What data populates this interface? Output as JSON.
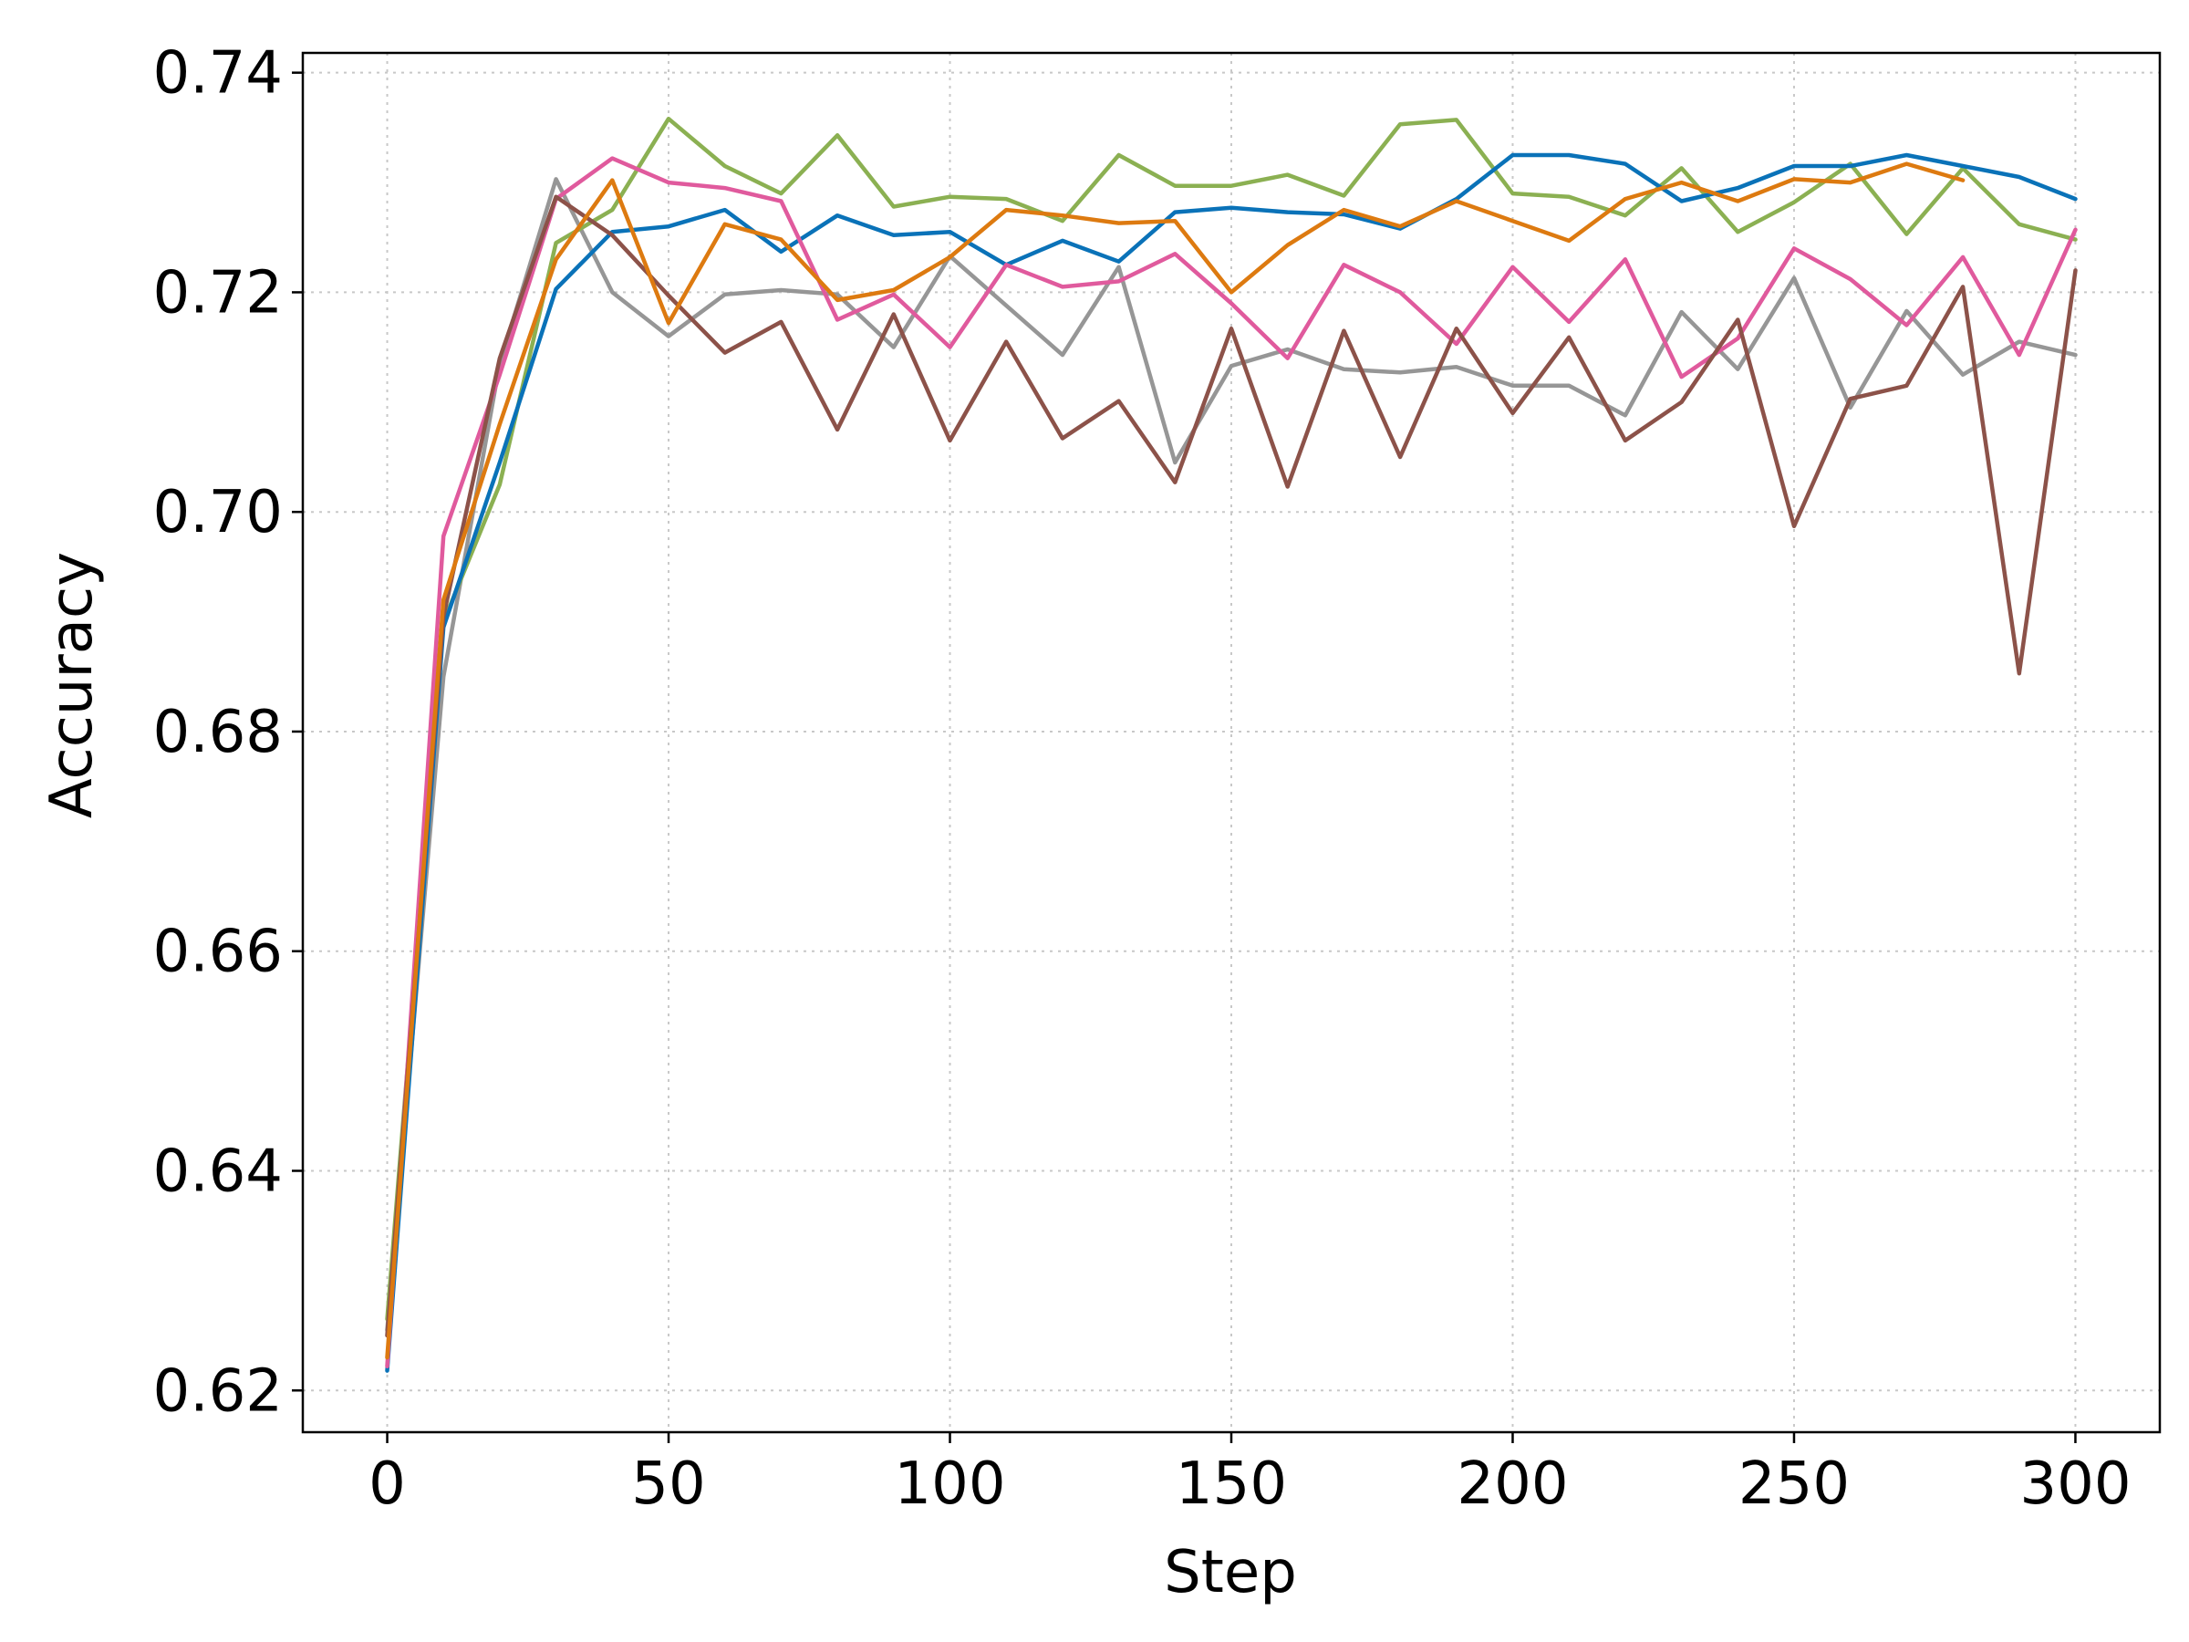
{
  "chart_data": {
    "type": "line",
    "title": "",
    "xlabel": "Step",
    "ylabel": "Accuracy",
    "xlim": [
      -15,
      315
    ],
    "ylim": [
      0.6162,
      0.7418
    ],
    "xticks": [
      0,
      50,
      100,
      150,
      200,
      250,
      300
    ],
    "xtick_labels": [
      "0",
      "50",
      "100",
      "150",
      "200",
      "250",
      "300"
    ],
    "yticks": [
      0.62,
      0.64,
      0.66,
      0.68,
      0.7,
      0.72,
      0.74
    ],
    "ytick_labels": [
      "0.62",
      "0.64",
      "0.66",
      "0.68",
      "0.70",
      "0.72",
      "0.74"
    ],
    "grid": true,
    "legend": "none",
    "series": [
      {
        "color": "#969696",
        "x": [
          0,
          10,
          20,
          30,
          40,
          50,
          60,
          70,
          80,
          90,
          100,
          110,
          120,
          130,
          140,
          150,
          160,
          170,
          180,
          190,
          200,
          210,
          220,
          230,
          240,
          250,
          260,
          270,
          280,
          290,
          300
        ],
        "y": [
          0.6255,
          0.685,
          0.7135,
          0.7303,
          0.72,
          0.716,
          0.7198,
          0.7202,
          0.7198,
          0.715,
          0.7233,
          0.7188,
          0.7143,
          0.7223,
          0.7045,
          0.7133,
          0.7148,
          0.713,
          0.7127,
          0.7132,
          0.7115,
          0.7115,
          0.7088,
          0.7182,
          0.713,
          0.7213,
          0.7095,
          0.7183,
          0.7125,
          0.7155,
          0.7143
        ]
      },
      {
        "color": "#8bb052",
        "x": [
          0,
          10,
          20,
          30,
          40,
          50,
          60,
          70,
          80,
          90,
          100,
          110,
          120,
          130,
          140,
          150,
          160,
          170,
          180,
          190,
          200,
          210,
          220,
          230,
          240,
          250,
          260,
          270,
          280,
          290,
          300
        ],
        "y": [
          0.6265,
          0.69,
          0.7025,
          0.7245,
          0.7275,
          0.7358,
          0.7315,
          0.729,
          0.7343,
          0.7278,
          0.7287,
          0.7285,
          0.7265,
          0.7325,
          0.7297,
          0.7297,
          0.7307,
          0.7288,
          0.7353,
          0.7357,
          0.729,
          0.7287,
          0.727,
          0.7313,
          0.7255,
          0.7282,
          0.7317,
          0.7253,
          0.7313,
          0.7262,
          0.7248
        ]
      },
      {
        "color": "#0a72b8",
        "x": [
          0,
          10,
          20,
          30,
          40,
          50,
          60,
          70,
          80,
          90,
          100,
          110,
          120,
          130,
          140,
          150,
          160,
          170,
          180,
          190,
          200,
          210,
          220,
          230,
          240,
          250,
          260,
          270,
          280,
          290,
          300
        ],
        "y": [
          0.6218,
          0.6895,
          0.7045,
          0.7203,
          0.7255,
          0.726,
          0.7275,
          0.7237,
          0.727,
          0.7252,
          0.7255,
          0.7225,
          0.7247,
          0.7228,
          0.7273,
          0.7277,
          0.7273,
          0.7271,
          0.7258,
          0.7285,
          0.7325,
          0.7325,
          0.7317,
          0.7283,
          0.7295,
          0.7315,
          0.7315,
          0.7325,
          0.7315,
          0.7305,
          0.7285
        ]
      },
      {
        "color": "#e05a9d",
        "x": [
          0,
          10,
          20,
          30,
          40,
          50,
          60,
          70,
          80,
          90,
          100,
          110,
          120,
          130,
          140,
          150,
          160,
          170,
          180,
          190,
          200,
          210,
          220,
          230,
          240,
          250,
          260,
          270,
          280,
          290,
          300
        ],
        "y": [
          0.6222,
          0.6978,
          0.7125,
          0.7285,
          0.7322,
          0.73,
          0.7295,
          0.7283,
          0.7175,
          0.7198,
          0.715,
          0.7225,
          0.7205,
          0.721,
          0.7235,
          0.719,
          0.714,
          0.7225,
          0.72,
          0.7153,
          0.7223,
          0.7173,
          0.723,
          0.7123,
          0.7158,
          0.724,
          0.7212,
          0.717,
          0.7232,
          0.7143,
          0.7257
        ]
      },
      {
        "color": "#8c5249",
        "x": [
          0,
          10,
          20,
          30,
          40,
          50,
          60,
          70,
          80,
          90,
          100,
          110,
          120,
          130,
          140,
          150,
          160,
          170,
          180,
          190,
          200,
          210,
          220,
          230,
          240,
          250,
          260,
          270,
          280,
          290,
          300
        ],
        "y": [
          0.625,
          0.6905,
          0.714,
          0.7287,
          0.7252,
          0.7197,
          0.7145,
          0.7173,
          0.7075,
          0.718,
          0.7065,
          0.7155,
          0.7067,
          0.7101,
          0.7027,
          0.7167,
          0.7023,
          0.7165,
          0.705,
          0.7167,
          0.709,
          0.7159,
          0.7065,
          0.71,
          0.7175,
          0.6987,
          0.7103,
          0.7115,
          0.7205,
          0.6853,
          0.722
        ]
      },
      {
        "color": "#dd7a10",
        "x": [
          0,
          10,
          20,
          30,
          40,
          50,
          60,
          70,
          80,
          90,
          100,
          110,
          120,
          130,
          140,
          150,
          160,
          170,
          180,
          190,
          200,
          210,
          220,
          230,
          240,
          250,
          260,
          270,
          280
        ],
        "y": [
          0.623,
          0.692,
          0.708,
          0.723,
          0.7302,
          0.7172,
          0.7262,
          0.7248,
          0.7193,
          0.7202,
          0.7232,
          0.7275,
          0.727,
          0.7263,
          0.7265,
          0.72,
          0.7243,
          0.7275,
          0.726,
          0.7283,
          0.7265,
          0.7247,
          0.7285,
          0.73,
          0.7283,
          0.7303,
          0.73,
          0.7317,
          0.7302
        ]
      }
    ]
  }
}
